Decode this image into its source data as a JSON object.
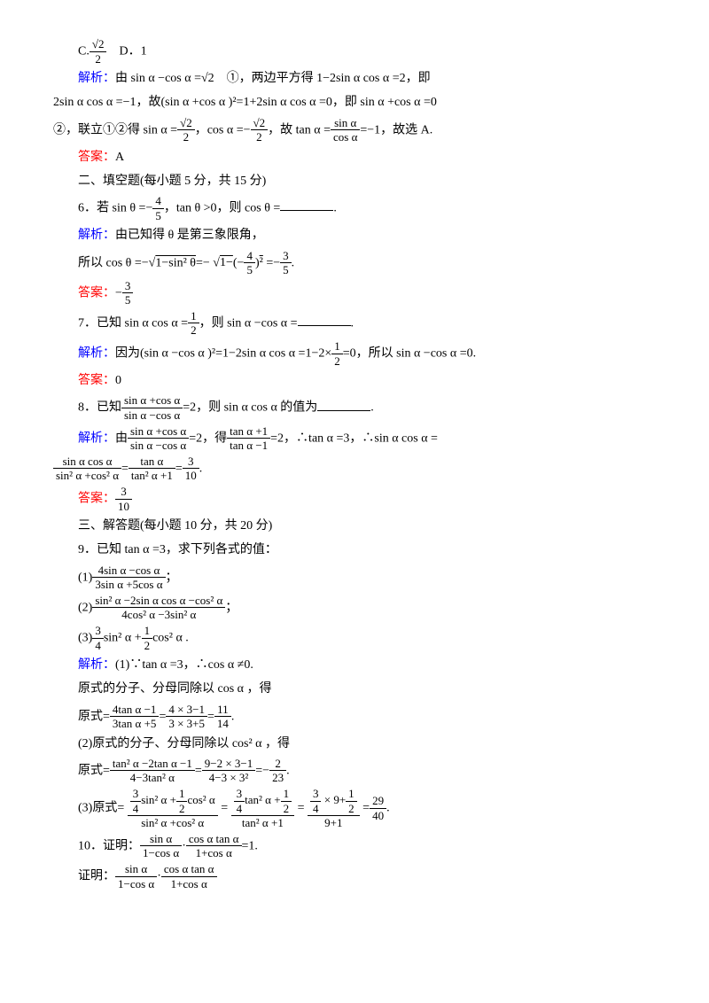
{
  "colors": {
    "blue": "#0000ff",
    "red": "#ff0000",
    "text": "#000000",
    "bg": "#ffffff"
  },
  "fontsize": 14,
  "q5": {
    "optC_frac": {
      "num": "√2",
      "den": "2"
    },
    "optD": "D．1",
    "jiexi_label": "解析：",
    "jiexi1": "由 sin α −cos α =√2　①，两边平方得 1−2sin α cos α =2，即",
    "jiexi2": "2sin α cos α =−1，故(sin α +cos α )²=1+2sin α cos α =0，即 sin α +cos α =0",
    "jiexi3a": "②，联立①②得 sin α =",
    "jiexi3b": "，cos α =−",
    "jiexi3c": "，故 tan α =",
    "jiexi3d": "=−1，故选 A.",
    "frac_tan": {
      "num": "sin α",
      "den": "cos α"
    },
    "daan_label": "答案：",
    "daan": "A"
  },
  "sec2": {
    "heading": "二、填空题(每小题 5 分，共 15 分)"
  },
  "q6": {
    "stem_a": "6．若 sin θ =−",
    "frac1": {
      "num": "4",
      "den": "5"
    },
    "stem_b": "，tan θ >0，则 cos θ =",
    "jiexi_label": "解析：",
    "jiexi1": "由已知得 θ 是第三象限角，",
    "jiexi2a": "所以 cos θ =−",
    "sqrt1": "1−sin² θ",
    "jiexi2b": "=−",
    "inner_a": "1−",
    "inner_frac": {
      "num": "4",
      "den": "5"
    },
    "inner_sq": "²",
    "jiexi2c": "=−",
    "frac_res": {
      "num": "3",
      "den": "5"
    },
    "daan_label": "答案：",
    "daan_a": "−",
    "daan_frac": {
      "num": "3",
      "den": "5"
    }
  },
  "q7": {
    "stem_a": "7．已知 sin α cos α =",
    "frac1": {
      "num": "1",
      "den": "2"
    },
    "stem_b": "，则 sin α −cos α =",
    "jiexi_label": "解析：",
    "jiexi1a": "因为(sin α −cos α )²=1−2sin α cos α =1−2×",
    "jiexi1b": "=0，所以 sin α −cos α =0.",
    "daan_label": "答案：",
    "daan": "0"
  },
  "q8": {
    "stem_a": "8．已知",
    "frac1": {
      "num": "sin α +cos α",
      "den": "sin α −cos α"
    },
    "stem_b": "=2，则 sin α cos α 的值为",
    "jiexi_label": "解析：",
    "jiexi1a": "由",
    "jiexi1b": "=2，得",
    "frac2": {
      "num": "tan α +1",
      "den": "tan α −1"
    },
    "jiexi1c": "=2，∴tan α =3，∴sin α cos α =",
    "frac3": {
      "num": "sin α cos α",
      "den": "sin² α +cos² α"
    },
    "jiexi2a": "=",
    "frac4": {
      "num": "tan α",
      "den": "tan² α +1"
    },
    "jiexi2b": "=",
    "frac5": {
      "num": "3",
      "den": "10"
    },
    "daan_label": "答案：",
    "daan_frac": {
      "num": "3",
      "den": "10"
    }
  },
  "sec3": {
    "heading": "三、解答题(每小题 10 分，共 20 分)"
  },
  "q9": {
    "stem": "9．已知 tan α =3，求下列各式的值：",
    "p1a": "(1)",
    "p1frac": {
      "num": "4sin α −cos α",
      "den": "3sin α +5cos α"
    },
    "p1b": "；",
    "p2a": "(2)",
    "p2frac": {
      "num": "sin² α −2sin α cos α −cos² α",
      "den": "4cos² α −3sin² α"
    },
    "p2b": "；",
    "p3a": "(3)",
    "p3frac1": {
      "num": "3",
      "den": "4"
    },
    "p3b": "sin² α +",
    "p3frac2": {
      "num": "1",
      "den": "2"
    },
    "p3c": "cos² α .",
    "jiexi_label": "解析：",
    "jiexi1": "(1)∵tan α =3，∴cos α ≠0.",
    "jiexi2": "原式的分子、分母同除以 cos α ，得",
    "jiexi3a": "原式=",
    "jiexi3frac1": {
      "num": "4tan α −1",
      "den": "3tan α +5"
    },
    "jiexi3b": "=",
    "jiexi3frac2": {
      "num": "4 × 3−1",
      "den": "3 × 3+5"
    },
    "jiexi3c": "=",
    "jiexi3frac3": {
      "num": "11",
      "den": "14"
    },
    "jiexi4": "(2)原式的分子、分母同除以 cos² α ，得",
    "jiexi5a": "原式=",
    "jiexi5frac1": {
      "num": "tan² α −2tan α −1",
      "den": "4−3tan² α"
    },
    "jiexi5b": "=",
    "jiexi5frac2": {
      "num": "9−2 × 3−1",
      "den": "4−3 × 3²"
    },
    "jiexi5c": "=−",
    "jiexi5frac3": {
      "num": "2",
      "den": "23"
    },
    "jiexi6a": "(3)原式=",
    "jiexi6frac1n_a": "sin² α +",
    "jiexi6frac1n_b": "cos² α",
    "jiexi6frac1d": "sin² α +cos² α",
    "jiexi6b": "=",
    "jiexi6frac2n_a": "tan² α +",
    "jiexi6frac2d": "tan² α +1",
    "jiexi6c": "=",
    "jiexi6frac3n_a": " × 9+",
    "jiexi6frac3d": "9+1",
    "jiexi6d": "=",
    "jiexi6frac4": {
      "num": "29",
      "den": "40"
    }
  },
  "q10": {
    "stem_a": "10．证明：",
    "frac1": {
      "num": "sin α",
      "den": "1−cos α"
    },
    "dot": "·",
    "frac2": {
      "num": "cos α tan α",
      "den": "1+cos α"
    },
    "stem_b": "=1.",
    "proof_label": "证明：",
    "proof_a": "",
    "proof_b": ""
  }
}
